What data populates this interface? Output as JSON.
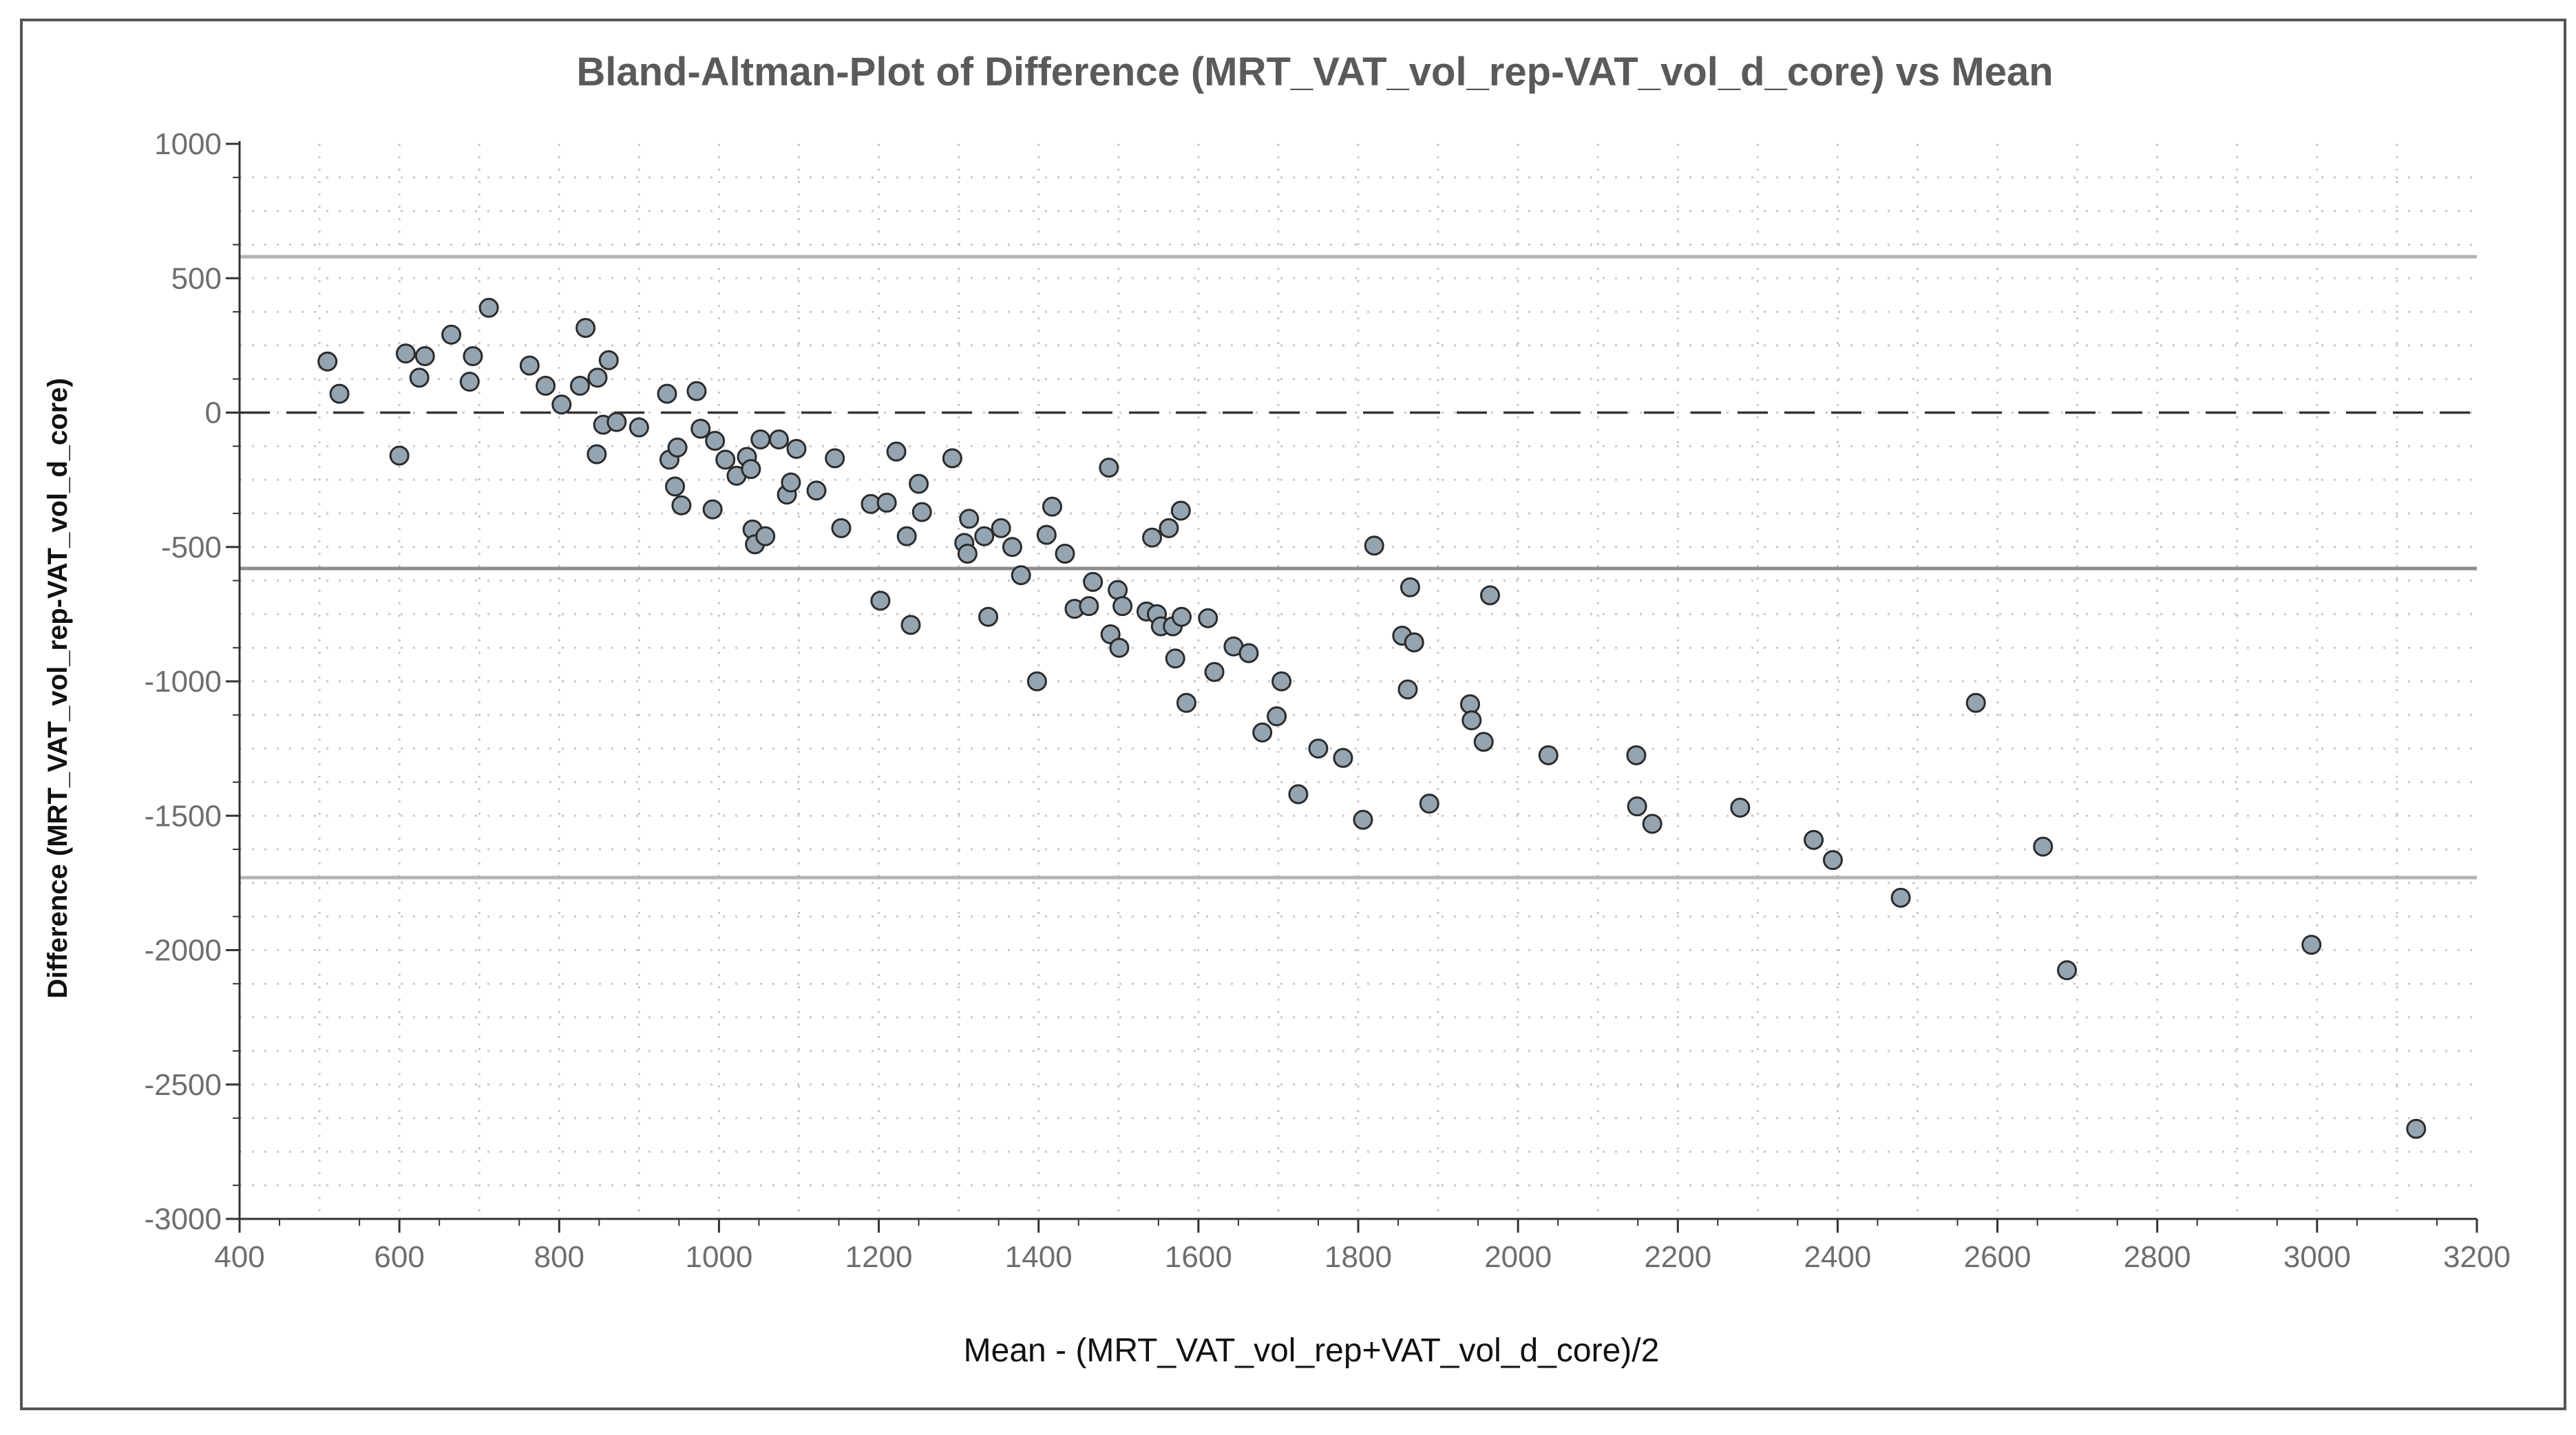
{
  "chart_data": {
    "type": "scatter",
    "title": "Bland-Altman-Plot of Difference (MRT_VAT_vol_rep-VAT_vol_d_core) vs Mean",
    "xlabel": "Mean - (MRT_VAT_vol_rep+VAT_vol_d_core)/2",
    "ylabel": "Difference (MRT_VAT_vol_rep-VAT_vol_d_core)",
    "xlim": [
      400,
      3200
    ],
    "ylim": [
      -3000,
      1000
    ],
    "xticks": [
      400,
      600,
      800,
      1000,
      1200,
      1400,
      1600,
      1800,
      2000,
      2200,
      2400,
      2600,
      2800,
      3000,
      3200
    ],
    "yticks": [
      1000,
      500,
      0,
      -500,
      -1000,
      -1500,
      -2000,
      -2500,
      -3000
    ],
    "grid": true,
    "reference_lines": {
      "zero_dashed": 0,
      "mean_difference": -580,
      "upper_limit": 580,
      "lower_limit": -1730
    },
    "colors": {
      "marker_fill": "#94a4b0",
      "marker_edge": "#2b2b2b",
      "limit_lines": "#b4b4b4",
      "mean_line": "#8c8c8c",
      "zero_line": "#333333",
      "title": "#5a5a5a",
      "grid": "#c8c8c8"
    },
    "points": [
      {
        "x": 510,
        "y": 190
      },
      {
        "x": 525,
        "y": 70
      },
      {
        "x": 600,
        "y": -160
      },
      {
        "x": 608,
        "y": 220
      },
      {
        "x": 625,
        "y": 130
      },
      {
        "x": 632,
        "y": 210
      },
      {
        "x": 665,
        "y": 290
      },
      {
        "x": 688,
        "y": 115
      },
      {
        "x": 692,
        "y": 210
      },
      {
        "x": 712,
        "y": 390
      },
      {
        "x": 763,
        "y": 175
      },
      {
        "x": 783,
        "y": 100
      },
      {
        "x": 803,
        "y": 30
      },
      {
        "x": 826,
        "y": 100
      },
      {
        "x": 833,
        "y": 315
      },
      {
        "x": 847,
        "y": -155
      },
      {
        "x": 848,
        "y": 130
      },
      {
        "x": 855,
        "y": -45
      },
      {
        "x": 862,
        "y": 195
      },
      {
        "x": 872,
        "y": -35
      },
      {
        "x": 900,
        "y": -55
      },
      {
        "x": 935,
        "y": 70
      },
      {
        "x": 938,
        "y": -175
      },
      {
        "x": 945,
        "y": -275
      },
      {
        "x": 948,
        "y": -130
      },
      {
        "x": 953,
        "y": -345
      },
      {
        "x": 972,
        "y": 80
      },
      {
        "x": 977,
        "y": -60
      },
      {
        "x": 992,
        "y": -360
      },
      {
        "x": 995,
        "y": -105
      },
      {
        "x": 1008,
        "y": -175
      },
      {
        "x": 1022,
        "y": -235
      },
      {
        "x": 1035,
        "y": -165
      },
      {
        "x": 1040,
        "y": -210
      },
      {
        "x": 1042,
        "y": -435
      },
      {
        "x": 1045,
        "y": -490
      },
      {
        "x": 1052,
        "y": -100
      },
      {
        "x": 1058,
        "y": -460
      },
      {
        "x": 1075,
        "y": -100
      },
      {
        "x": 1085,
        "y": -305
      },
      {
        "x": 1090,
        "y": -260
      },
      {
        "x": 1097,
        "y": -135
      },
      {
        "x": 1122,
        "y": -290
      },
      {
        "x": 1145,
        "y": -170
      },
      {
        "x": 1153,
        "y": -430
      },
      {
        "x": 1190,
        "y": -340
      },
      {
        "x": 1202,
        "y": -700
      },
      {
        "x": 1210,
        "y": -335
      },
      {
        "x": 1222,
        "y": -145
      },
      {
        "x": 1235,
        "y": -460
      },
      {
        "x": 1240,
        "y": -790
      },
      {
        "x": 1250,
        "y": -265
      },
      {
        "x": 1254,
        "y": -370
      },
      {
        "x": 1292,
        "y": -170
      },
      {
        "x": 1307,
        "y": -485
      },
      {
        "x": 1311,
        "y": -525
      },
      {
        "x": 1313,
        "y": -395
      },
      {
        "x": 1332,
        "y": -460
      },
      {
        "x": 1337,
        "y": -760
      },
      {
        "x": 1353,
        "y": -430
      },
      {
        "x": 1367,
        "y": -500
      },
      {
        "x": 1378,
        "y": -605
      },
      {
        "x": 1398,
        "y": -1000
      },
      {
        "x": 1410,
        "y": -455
      },
      {
        "x": 1417,
        "y": -350
      },
      {
        "x": 1433,
        "y": -525
      },
      {
        "x": 1445,
        "y": -730
      },
      {
        "x": 1463,
        "y": -720
      },
      {
        "x": 1468,
        "y": -630
      },
      {
        "x": 1488,
        "y": -205
      },
      {
        "x": 1490,
        "y": -825
      },
      {
        "x": 1499,
        "y": -660
      },
      {
        "x": 1501,
        "y": -875
      },
      {
        "x": 1505,
        "y": -720
      },
      {
        "x": 1535,
        "y": -740
      },
      {
        "x": 1542,
        "y": -465
      },
      {
        "x": 1548,
        "y": -750
      },
      {
        "x": 1553,
        "y": -795
      },
      {
        "x": 1563,
        "y": -430
      },
      {
        "x": 1568,
        "y": -795
      },
      {
        "x": 1571,
        "y": -915
      },
      {
        "x": 1578,
        "y": -365
      },
      {
        "x": 1579,
        "y": -760
      },
      {
        "x": 1585,
        "y": -1080
      },
      {
        "x": 1612,
        "y": -765
      },
      {
        "x": 1620,
        "y": -965
      },
      {
        "x": 1644,
        "y": -870
      },
      {
        "x": 1663,
        "y": -895
      },
      {
        "x": 1680,
        "y": -1190
      },
      {
        "x": 1698,
        "y": -1130
      },
      {
        "x": 1704,
        "y": -1000
      },
      {
        "x": 1725,
        "y": -1420
      },
      {
        "x": 1750,
        "y": -1250
      },
      {
        "x": 1781,
        "y": -1285
      },
      {
        "x": 1806,
        "y": -1515
      },
      {
        "x": 1820,
        "y": -495
      },
      {
        "x": 1855,
        "y": -830
      },
      {
        "x": 1862,
        "y": -1030
      },
      {
        "x": 1865,
        "y": -650
      },
      {
        "x": 1870,
        "y": -855
      },
      {
        "x": 1889,
        "y": -1455
      },
      {
        "x": 1940,
        "y": -1085
      },
      {
        "x": 1942,
        "y": -1145
      },
      {
        "x": 1957,
        "y": -1225
      },
      {
        "x": 1965,
        "y": -680
      },
      {
        "x": 2038,
        "y": -1275
      },
      {
        "x": 2148,
        "y": -1275
      },
      {
        "x": 2149,
        "y": -1465
      },
      {
        "x": 2168,
        "y": -1530
      },
      {
        "x": 2278,
        "y": -1470
      },
      {
        "x": 2370,
        "y": -1590
      },
      {
        "x": 2394,
        "y": -1665
      },
      {
        "x": 2479,
        "y": -1805
      },
      {
        "x": 2573,
        "y": -1080
      },
      {
        "x": 2657,
        "y": -1615
      },
      {
        "x": 2687,
        "y": -2075
      },
      {
        "x": 2993,
        "y": -1980
      },
      {
        "x": 3124,
        "y": -2665
      }
    ]
  }
}
